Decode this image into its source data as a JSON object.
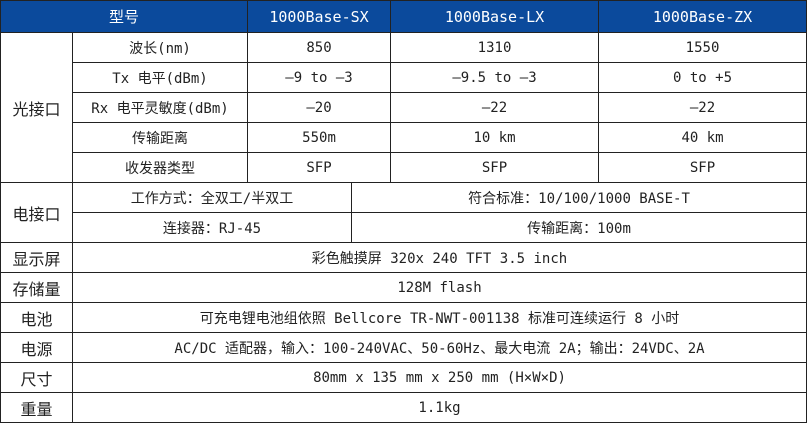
{
  "header": {
    "model": "型号",
    "sx": "1000Base-SX",
    "lx": "1000Base-LX",
    "zx": "1000Base-ZX"
  },
  "optical": {
    "category": "光接口",
    "rows": [
      {
        "label": "波长(nm)",
        "sx": "850",
        "lx": "1310",
        "zx": "1550"
      },
      {
        "label": "Tx 电平(dBm)",
        "sx": "—9 to —3",
        "lx": "—9.5 to —3",
        "zx": "0 to +5"
      },
      {
        "label": "Rx 电平灵敏度(dBm)",
        "sx": "—20",
        "lx": "—22",
        "zx": "—22"
      },
      {
        "label": "传输距离",
        "sx": "550m",
        "lx": "10 km",
        "zx": "40 km"
      },
      {
        "label": "收发器类型",
        "sx": "SFP",
        "lx": "SFP",
        "zx": "SFP"
      }
    ]
  },
  "electrical": {
    "category": "电接口",
    "mode": "工作方式：全双工/半双工",
    "standard": "符合标准：10/100/1000 BASE-T",
    "connector": "连接器：RJ-45",
    "distance": "传输距离：100m"
  },
  "specs": [
    {
      "label": "显示屏",
      "value": "彩色触摸屏 320x 240 TFT 3.5 inch"
    },
    {
      "label": "存储量",
      "value": "128M flash"
    },
    {
      "label": "电池",
      "value": "可充电锂电池组依照 Bellcore TR-NWT-001138 标准可连续运行 8 小时"
    },
    {
      "label": "电源",
      "value": "AC/DC 适配器，输入：100-240VAC、50-60Hz、最大电流 2A；输出：24VDC、2A"
    },
    {
      "label": "尺寸",
      "value": "80mm x 135 mm x 250 mm (H×W×D)"
    },
    {
      "label": "重量",
      "value": "1.1kg"
    }
  ]
}
